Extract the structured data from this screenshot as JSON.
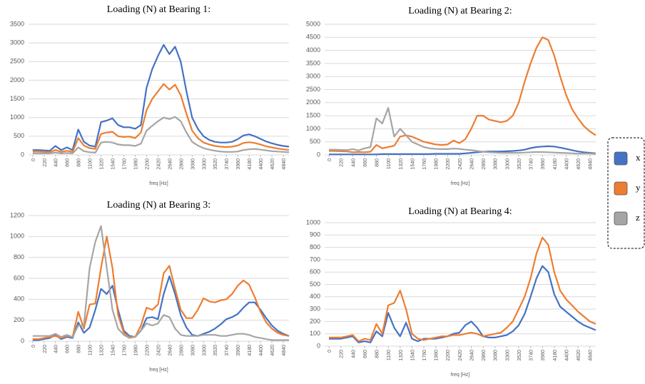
{
  "chart_data": [
    {
      "type": "line",
      "title": "Loading (N) at Bearing 1:",
      "xlabel": "freq [Hz]",
      "grid": true,
      "legend": "right",
      "x": [
        0,
        110,
        220,
        330,
        440,
        550,
        660,
        770,
        880,
        990,
        1100,
        1210,
        1320,
        1430,
        1540,
        1650,
        1760,
        1870,
        1980,
        2090,
        2200,
        2310,
        2420,
        2530,
        2640,
        2750,
        2860,
        2970,
        3080,
        3190,
        3300,
        3410,
        3520,
        3630,
        3740,
        3850,
        3960,
        4070,
        4180,
        4290,
        4400,
        4510,
        4620,
        4730,
        4840,
        4950
      ],
      "xlim": [
        -80,
        4950
      ],
      "xticks": [
        0,
        220,
        440,
        660,
        880,
        1100,
        1320,
        1540,
        1760,
        1980,
        2200,
        2420,
        2640,
        2860,
        3080,
        3300,
        3520,
        3740,
        3960,
        4180,
        4400,
        4620,
        4840
      ],
      "ylim": [
        0,
        3500
      ],
      "yticks": [
        0,
        500,
        1000,
        1500,
        2000,
        2500,
        3000,
        3500
      ],
      "series": [
        {
          "name": "x",
          "color": "#4472c4",
          "values": [
            130,
            130,
            120,
            110,
            240,
            130,
            200,
            130,
            680,
            350,
            250,
            220,
            880,
            920,
            980,
            800,
            740,
            740,
            700,
            800,
            1800,
            2300,
            2650,
            2950,
            2700,
            2900,
            2500,
            1700,
            1000,
            700,
            500,
            400,
            350,
            330,
            330,
            350,
            420,
            520,
            550,
            500,
            430,
            360,
            310,
            270,
            240,
            220
          ]
        },
        {
          "name": "y",
          "color": "#ed7d31",
          "values": [
            90,
            90,
            80,
            70,
            130,
            80,
            110,
            80,
            450,
            250,
            180,
            160,
            560,
            600,
            620,
            500,
            480,
            490,
            450,
            600,
            1200,
            1500,
            1700,
            1900,
            1750,
            1880,
            1600,
            1100,
            650,
            450,
            330,
            280,
            240,
            220,
            210,
            220,
            250,
            320,
            340,
            320,
            280,
            230,
            200,
            170,
            150,
            130
          ]
        },
        {
          "name": "z",
          "color": "#a5a5a5",
          "values": [
            40,
            40,
            40,
            40,
            60,
            40,
            50,
            40,
            200,
            100,
            70,
            60,
            330,
            350,
            330,
            280,
            260,
            260,
            240,
            300,
            650,
            780,
            900,
            1000,
            960,
            1020,
            900,
            600,
            350,
            250,
            180,
            140,
            110,
            90,
            80,
            80,
            90,
            130,
            150,
            160,
            140,
            120,
            100,
            90,
            80,
            70
          ]
        }
      ]
    },
    {
      "type": "line",
      "title": "Loading (N) at Bearing 2:",
      "xlabel": "freq [Hz]",
      "grid": true,
      "x": [
        0,
        110,
        220,
        330,
        440,
        550,
        660,
        770,
        880,
        990,
        1100,
        1210,
        1320,
        1430,
        1540,
        1650,
        1760,
        1870,
        1980,
        2090,
        2200,
        2310,
        2420,
        2530,
        2640,
        2750,
        2860,
        2970,
        3080,
        3190,
        3300,
        3410,
        3520,
        3630,
        3740,
        3850,
        3960,
        4070,
        4180,
        4290,
        4400,
        4510,
        4620,
        4730,
        4840,
        4950
      ],
      "xlim": [
        -80,
        4950
      ],
      "xticks": [
        0,
        220,
        440,
        660,
        880,
        1100,
        1320,
        1540,
        1760,
        1980,
        2200,
        2420,
        2640,
        2860,
        3080,
        3300,
        3520,
        3740,
        3960,
        4180,
        4400,
        4620,
        4840
      ],
      "ylim": [
        0,
        5000
      ],
      "yticks": [
        0,
        500,
        1000,
        1500,
        2000,
        2500,
        3000,
        3500,
        4000,
        4500,
        5000
      ],
      "series": [
        {
          "name": "x",
          "color": "#4472c4",
          "values": [
            20,
            20,
            20,
            20,
            20,
            20,
            20,
            20,
            20,
            30,
            30,
            30,
            30,
            30,
            30,
            30,
            30,
            30,
            40,
            40,
            40,
            40,
            40,
            60,
            80,
            100,
            120,
            130,
            130,
            130,
            140,
            150,
            170,
            200,
            260,
            300,
            320,
            330,
            320,
            280,
            230,
            180,
            130,
            100,
            80,
            60
          ]
        },
        {
          "name": "y",
          "color": "#ed7d31",
          "values": [
            150,
            150,
            140,
            130,
            100,
            110,
            100,
            120,
            380,
            250,
            300,
            350,
            700,
            750,
            700,
            600,
            500,
            450,
            400,
            380,
            400,
            550,
            450,
            600,
            1000,
            1500,
            1500,
            1350,
            1300,
            1250,
            1300,
            1500,
            2000,
            2800,
            3500,
            4100,
            4500,
            4400,
            3800,
            3000,
            2300,
            1750,
            1400,
            1100,
            900,
            750
          ]
        },
        {
          "name": "z",
          "color": "#a5a5a5",
          "values": [
            200,
            200,
            190,
            180,
            220,
            170,
            250,
            300,
            1400,
            1200,
            1800,
            700,
            1000,
            750,
            500,
            400,
            300,
            250,
            230,
            220,
            220,
            240,
            230,
            200,
            180,
            150,
            120,
            100,
            90,
            80,
            80,
            80,
            80,
            90,
            100,
            110,
            110,
            100,
            90,
            80,
            70,
            60,
            50,
            50,
            50,
            40
          ]
        }
      ]
    },
    {
      "type": "line",
      "title": "Loading (N) at Bearing 3:",
      "xlabel": "freq [Hz]",
      "grid": true,
      "x": [
        0,
        110,
        220,
        330,
        440,
        550,
        660,
        770,
        880,
        990,
        1100,
        1210,
        1320,
        1430,
        1540,
        1650,
        1760,
        1870,
        1980,
        2090,
        2200,
        2310,
        2420,
        2530,
        2640,
        2750,
        2860,
        2970,
        3080,
        3190,
        3300,
        3410,
        3520,
        3630,
        3740,
        3850,
        3960,
        4070,
        4180,
        4290,
        4400,
        4510,
        4620,
        4730,
        4840,
        4950
      ],
      "xlim": [
        -80,
        4950
      ],
      "xticks": [
        0,
        220,
        440,
        660,
        880,
        1100,
        1320,
        1540,
        1760,
        1980,
        2200,
        2420,
        2640,
        2860,
        3080,
        3300,
        3520,
        3740,
        3960,
        4180,
        4400,
        4620,
        4840
      ],
      "ylim": [
        0,
        1200
      ],
      "yticks": [
        0,
        200,
        400,
        600,
        800,
        1000,
        1200
      ],
      "series": [
        {
          "name": "x",
          "color": "#4472c4",
          "values": [
            10,
            10,
            20,
            30,
            60,
            20,
            40,
            30,
            180,
            80,
            130,
            300,
            500,
            450,
            530,
            300,
            100,
            50,
            40,
            100,
            220,
            230,
            210,
            450,
            620,
            450,
            250,
            130,
            60,
            50,
            70,
            90,
            120,
            160,
            210,
            230,
            260,
            320,
            370,
            370,
            300,
            220,
            150,
            100,
            70,
            50
          ]
        },
        {
          "name": "y",
          "color": "#ed7d31",
          "values": [
            20,
            20,
            30,
            40,
            50,
            30,
            50,
            40,
            280,
            120,
            350,
            360,
            700,
            1000,
            700,
            250,
            80,
            40,
            40,
            150,
            320,
            300,
            350,
            650,
            720,
            500,
            300,
            220,
            220,
            300,
            410,
            380,
            370,
            390,
            400,
            450,
            530,
            580,
            540,
            420,
            280,
            180,
            120,
            80,
            60,
            50
          ]
        },
        {
          "name": "z",
          "color": "#a5a5a5",
          "values": [
            50,
            50,
            50,
            50,
            70,
            40,
            60,
            40,
            150,
            150,
            700,
            950,
            1100,
            700,
            300,
            120,
            60,
            30,
            40,
            100,
            170,
            150,
            170,
            250,
            230,
            120,
            60,
            50,
            50,
            50,
            60,
            60,
            60,
            50,
            50,
            60,
            70,
            70,
            60,
            40,
            30,
            20,
            10,
            10,
            10,
            10
          ]
        }
      ]
    },
    {
      "type": "line",
      "title": "Loading (N) at Bearing 4:",
      "xlabel": "freq [Hz]",
      "grid": true,
      "x": [
        0,
        110,
        220,
        330,
        440,
        550,
        660,
        770,
        880,
        990,
        1100,
        1210,
        1320,
        1430,
        1540,
        1650,
        1760,
        1870,
        1980,
        2090,
        2200,
        2310,
        2420,
        2530,
        2640,
        2750,
        2860,
        2970,
        3080,
        3190,
        3300,
        3410,
        3520,
        3630,
        3740,
        3850,
        3960,
        4070,
        4180,
        4290,
        4400,
        4510,
        4620,
        4730,
        4840,
        4950
      ],
      "xlim": [
        -80,
        4950
      ],
      "xticks": [
        0,
        220,
        440,
        660,
        880,
        1100,
        1320,
        1540,
        1760,
        1980,
        2200,
        2420,
        2640,
        2860,
        3080,
        3300,
        3520,
        3740,
        3960,
        4180,
        4400,
        4620,
        4840
      ],
      "ylim": [
        0,
        1000
      ],
      "yticks": [
        0,
        100,
        200,
        300,
        400,
        500,
        600,
        700,
        800,
        900,
        1000
      ],
      "series": [
        {
          "name": "x",
          "color": "#4472c4",
          "values": [
            60,
            60,
            60,
            70,
            80,
            30,
            40,
            30,
            120,
            80,
            270,
            150,
            80,
            190,
            60,
            40,
            60,
            60,
            60,
            70,
            80,
            100,
            110,
            170,
            200,
            150,
            80,
            70,
            70,
            80,
            90,
            120,
            170,
            260,
            400,
            550,
            650,
            600,
            420,
            320,
            280,
            240,
            200,
            170,
            150,
            130
          ]
        },
        {
          "name": "y",
          "color": "#ed7d31",
          "values": [
            70,
            70,
            70,
            80,
            90,
            40,
            60,
            50,
            180,
            100,
            330,
            350,
            450,
            300,
            100,
            60,
            50,
            60,
            70,
            80,
            80,
            90,
            90,
            100,
            110,
            100,
            80,
            90,
            100,
            110,
            150,
            200,
            300,
            400,
            550,
            750,
            880,
            820,
            600,
            450,
            380,
            330,
            280,
            240,
            200,
            180
          ]
        }
      ]
    }
  ]
}
